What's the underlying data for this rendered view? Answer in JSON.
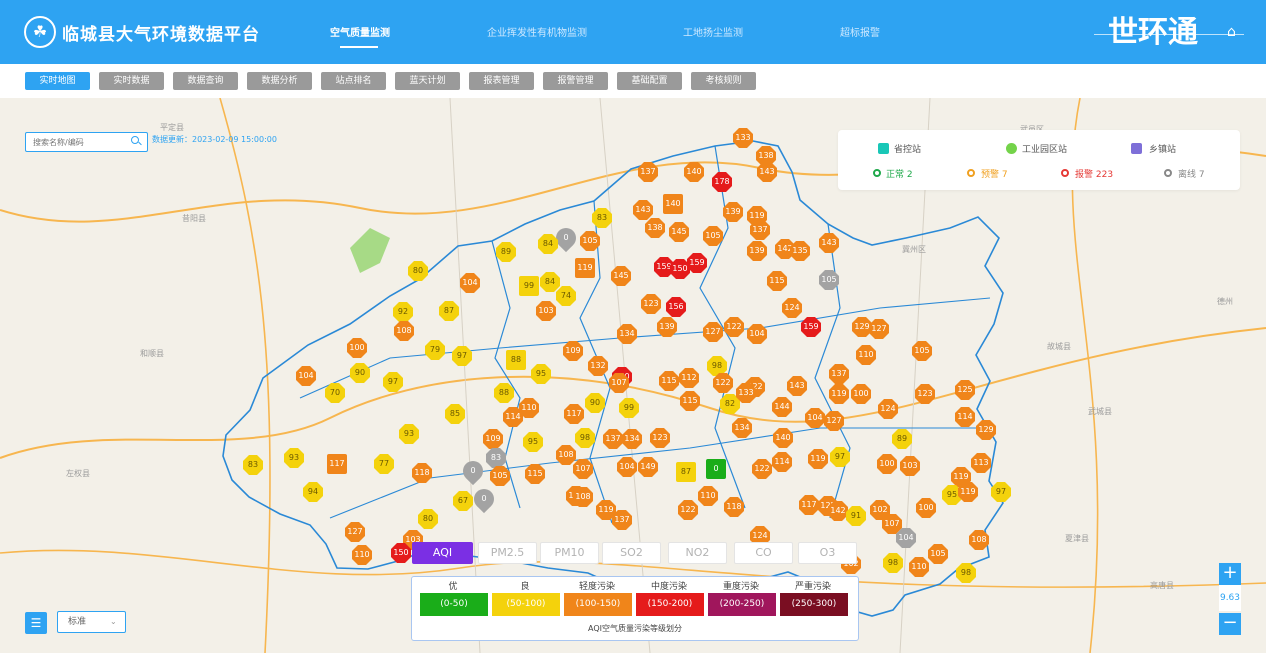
{
  "header": {
    "title": "临城县大气环境数据平台",
    "logo_glyph": "☘",
    "tabs": [
      {
        "label": "空气质量监测",
        "active": true
      },
      {
        "label": "企业挥发性有机物监测",
        "active": false
      },
      {
        "label": "工地扬尘监测",
        "active": false
      },
      {
        "label": "超标报警",
        "active": false
      }
    ],
    "brand": "世环通",
    "home_icon": "⌂"
  },
  "subnav": [
    {
      "label": "实时地图",
      "active": true
    },
    {
      "label": "实时数据",
      "active": false
    },
    {
      "label": "数据查询",
      "active": false
    },
    {
      "label": "数据分析",
      "active": false
    },
    {
      "label": "站点排名",
      "active": false
    },
    {
      "label": "蓝天计划",
      "active": false
    },
    {
      "label": "报表管理",
      "active": false
    },
    {
      "label": "报警管理",
      "active": false
    },
    {
      "label": "基础配置",
      "active": false
    },
    {
      "label": "考核规则",
      "active": false
    }
  ],
  "search": {
    "placeholder": "搜索名称/编码",
    "value": ""
  },
  "update_info": "数据更新：2023-02-09 15:00:00",
  "legend": {
    "station_types": [
      {
        "label": "省控站",
        "icon": "flag-icon",
        "color": "#19c7b7"
      },
      {
        "label": "工业园区站",
        "icon": "leaf-icon",
        "color": "#74d34a"
      },
      {
        "label": "乡镇站",
        "icon": "house-icon",
        "color": "#7e6fd8"
      }
    ],
    "status": [
      {
        "label": "正常 2",
        "color": "#1ea84a"
      },
      {
        "label": "预警 7",
        "color": "#f0a020"
      },
      {
        "label": "报警 223",
        "color": "#e53935"
      },
      {
        "label": "离线 7",
        "color": "#888888"
      }
    ]
  },
  "pollutants": [
    {
      "label": "AQI",
      "active": true
    },
    {
      "label": "PM2.5",
      "active": false
    },
    {
      "label": "PM10",
      "active": false
    },
    {
      "label": "SO2",
      "active": false
    },
    {
      "label": "NO2",
      "active": false
    },
    {
      "label": "CO",
      "active": false
    },
    {
      "label": "O3",
      "active": false
    }
  ],
  "aqi_scale": {
    "caption": "AQI空气质量污染等级划分",
    "levels": [
      {
        "name": "优",
        "range": "(0-50)",
        "color": "#1aad19"
      },
      {
        "name": "良",
        "range": "(50-100)",
        "color": "#f4d20c"
      },
      {
        "name": "轻度污染",
        "range": "(100-150)",
        "color": "#f0851a"
      },
      {
        "name": "中度污染",
        "range": "(150-200)",
        "color": "#e51b1b"
      },
      {
        "name": "重度污染",
        "range": "(200-250)",
        "color": "#a0165c"
      },
      {
        "name": "严重污染",
        "range": "(250-300)",
        "color": "#7a0e22"
      }
    ]
  },
  "map_controls": {
    "map_type": "标准",
    "zoom_in": "+",
    "zoom_out": "−",
    "zoom_level": "9.63"
  },
  "places": [
    {
      "name": "平定县"
    },
    {
      "name": "昔阳县"
    },
    {
      "name": "和顺县"
    },
    {
      "name": "左权县"
    },
    {
      "name": "武邑区"
    },
    {
      "name": "冀州区"
    },
    {
      "name": "故城县"
    },
    {
      "name": "武城县"
    },
    {
      "name": "夏津县"
    },
    {
      "name": "高唐县"
    },
    {
      "name": "德州"
    }
  ],
  "stations": [
    {
      "value": "133",
      "level": "light",
      "shape": "oct"
    },
    {
      "value": "138",
      "level": "light",
      "shape": "oct"
    },
    {
      "value": "137",
      "level": "light",
      "shape": "oct"
    },
    {
      "value": "140",
      "level": "light",
      "shape": "oct"
    },
    {
      "value": "178",
      "level": "moderate",
      "shape": "oct"
    },
    {
      "value": "143",
      "level": "light",
      "shape": "oct"
    },
    {
      "value": "143",
      "level": "light",
      "shape": "oct"
    },
    {
      "value": "140",
      "level": "light",
      "shape": "sq"
    },
    {
      "value": "138",
      "level": "light",
      "shape": "oct"
    },
    {
      "value": "145",
      "level": "light",
      "shape": "oct"
    },
    {
      "value": "139",
      "level": "light",
      "shape": "oct"
    },
    {
      "value": "119",
      "level": "light",
      "shape": "oct"
    },
    {
      "value": "105",
      "level": "light",
      "shape": "oct"
    },
    {
      "value": "137",
      "level": "light",
      "shape": "oct"
    },
    {
      "value": "83",
      "level": "good",
      "shape": "oct"
    },
    {
      "value": "0",
      "level": "offline",
      "shape": "pin"
    },
    {
      "value": "105",
      "level": "light",
      "shape": "oct"
    },
    {
      "value": "84",
      "level": "good",
      "shape": "oct"
    },
    {
      "value": "89",
      "level": "good",
      "shape": "oct"
    },
    {
      "value": "139",
      "level": "light",
      "shape": "oct"
    },
    {
      "value": "142",
      "level": "light",
      "shape": "oct"
    },
    {
      "value": "135",
      "level": "light",
      "shape": "oct"
    },
    {
      "value": "143",
      "level": "light",
      "shape": "oct"
    },
    {
      "value": "80",
      "level": "good",
      "shape": "oct"
    },
    {
      "value": "119",
      "level": "light",
      "shape": "sq"
    },
    {
      "value": "145",
      "level": "light",
      "shape": "oct"
    },
    {
      "value": "159",
      "level": "moderate",
      "shape": "oct"
    },
    {
      "value": "150",
      "level": "moderate",
      "shape": "oct"
    },
    {
      "value": "159",
      "level": "moderate",
      "shape": "oct"
    },
    {
      "value": "115",
      "level": "light",
      "shape": "oct"
    },
    {
      "value": "105",
      "level": "offline",
      "shape": "oct"
    },
    {
      "value": "104",
      "level": "light",
      "shape": "oct"
    },
    {
      "value": "99",
      "level": "good",
      "shape": "sq"
    },
    {
      "value": "84",
      "level": "good",
      "shape": "oct"
    },
    {
      "value": "74",
      "level": "good",
      "shape": "oct"
    },
    {
      "value": "92",
      "level": "good",
      "shape": "oct"
    },
    {
      "value": "87",
      "level": "good",
      "shape": "oct"
    },
    {
      "value": "103",
      "level": "light",
      "shape": "oct"
    },
    {
      "value": "123",
      "level": "light",
      "shape": "oct"
    },
    {
      "value": "156",
      "level": "moderate",
      "shape": "oct"
    },
    {
      "value": "124",
      "level": "light",
      "shape": "oct"
    },
    {
      "value": "108",
      "level": "light",
      "shape": "oct"
    },
    {
      "value": "134",
      "level": "light",
      "shape": "oct"
    },
    {
      "value": "139",
      "level": "light",
      "shape": "oct"
    },
    {
      "value": "127",
      "level": "light",
      "shape": "oct"
    },
    {
      "value": "122",
      "level": "light",
      "shape": "oct"
    },
    {
      "value": "104",
      "level": "light",
      "shape": "oct"
    },
    {
      "value": "159",
      "level": "moderate",
      "shape": "oct"
    },
    {
      "value": "129",
      "level": "light",
      "shape": "oct"
    },
    {
      "value": "127",
      "level": "light",
      "shape": "oct"
    },
    {
      "value": "100",
      "level": "light",
      "shape": "oct"
    },
    {
      "value": "79",
      "level": "good",
      "shape": "oct"
    },
    {
      "value": "97",
      "level": "good",
      "shape": "oct"
    },
    {
      "value": "88",
      "level": "good",
      "shape": "sq"
    },
    {
      "value": "109",
      "level": "light",
      "shape": "oct"
    },
    {
      "value": "132",
      "level": "light",
      "shape": "oct"
    },
    {
      "value": "150",
      "level": "moderate",
      "shape": "oct"
    },
    {
      "value": "110",
      "level": "light",
      "shape": "oct"
    },
    {
      "value": "105",
      "level": "light",
      "shape": "oct"
    },
    {
      "value": "104",
      "level": "light",
      "shape": "oct"
    },
    {
      "value": "90",
      "level": "good",
      "shape": "oct"
    },
    {
      "value": "97",
      "level": "good",
      "shape": "oct"
    },
    {
      "value": "70",
      "level": "good",
      "shape": "oct"
    },
    {
      "value": "95",
      "level": "good",
      "shape": "oct"
    },
    {
      "value": "107",
      "level": "light",
      "shape": "oct"
    },
    {
      "value": "115",
      "level": "light",
      "shape": "oct"
    },
    {
      "value": "112",
      "level": "light",
      "shape": "oct"
    },
    {
      "value": "98",
      "level": "good",
      "shape": "oct"
    },
    {
      "value": "122",
      "level": "light",
      "shape": "oct"
    },
    {
      "value": "143",
      "level": "light",
      "shape": "oct"
    },
    {
      "value": "137",
      "level": "light",
      "shape": "oct"
    },
    {
      "value": "125",
      "level": "light",
      "shape": "oct"
    },
    {
      "value": "122",
      "level": "light",
      "shape": "oct"
    },
    {
      "value": "88",
      "level": "good",
      "shape": "oct"
    },
    {
      "value": "110",
      "level": "light",
      "shape": "oct"
    },
    {
      "value": "90",
      "level": "good",
      "shape": "oct"
    },
    {
      "value": "99",
      "level": "good",
      "shape": "oct"
    },
    {
      "value": "115",
      "level": "light",
      "shape": "oct"
    },
    {
      "value": "82",
      "level": "good",
      "shape": "oct"
    },
    {
      "value": "133",
      "level": "light",
      "shape": "oct"
    },
    {
      "value": "144",
      "level": "light",
      "shape": "oct"
    },
    {
      "value": "119",
      "level": "light",
      "shape": "oct"
    },
    {
      "value": "100",
      "level": "light",
      "shape": "oct"
    },
    {
      "value": "124",
      "level": "light",
      "shape": "oct"
    },
    {
      "value": "123",
      "level": "light",
      "shape": "oct"
    },
    {
      "value": "114",
      "level": "light",
      "shape": "oct"
    },
    {
      "value": "85",
      "level": "good",
      "shape": "oct"
    },
    {
      "value": "114",
      "level": "light",
      "shape": "oct"
    },
    {
      "value": "117",
      "level": "light",
      "shape": "oct"
    },
    {
      "value": "104",
      "level": "light",
      "shape": "oct"
    },
    {
      "value": "127",
      "level": "light",
      "shape": "oct"
    },
    {
      "value": "134",
      "level": "light",
      "shape": "oct"
    },
    {
      "value": "129",
      "level": "light",
      "shape": "oct"
    },
    {
      "value": "93",
      "level": "good",
      "shape": "oct"
    },
    {
      "value": "109",
      "level": "light",
      "shape": "oct"
    },
    {
      "value": "95",
      "level": "good",
      "shape": "oct"
    },
    {
      "value": "98",
      "level": "good",
      "shape": "oct"
    },
    {
      "value": "137",
      "level": "light",
      "shape": "oct"
    },
    {
      "value": "134",
      "level": "light",
      "shape": "oct"
    },
    {
      "value": "123",
      "level": "light",
      "shape": "oct"
    },
    {
      "value": "140",
      "level": "light",
      "shape": "oct"
    },
    {
      "value": "108",
      "level": "light",
      "shape": "oct"
    },
    {
      "value": "119",
      "level": "light",
      "shape": "oct"
    },
    {
      "value": "97",
      "level": "good",
      "shape": "oct"
    },
    {
      "value": "89",
      "level": "good",
      "shape": "oct"
    },
    {
      "value": "83",
      "level": "good",
      "shape": "oct"
    },
    {
      "value": "93",
      "level": "good",
      "shape": "oct"
    },
    {
      "value": "117",
      "level": "light",
      "shape": "sq"
    },
    {
      "value": "77",
      "level": "good",
      "shape": "oct"
    },
    {
      "value": "118",
      "level": "light",
      "shape": "oct"
    },
    {
      "value": "0",
      "level": "offline",
      "shape": "pin"
    },
    {
      "value": "83",
      "level": "offline",
      "shape": "oct"
    },
    {
      "value": "105",
      "level": "light",
      "shape": "oct"
    },
    {
      "value": "115",
      "level": "light",
      "shape": "oct"
    },
    {
      "value": "107",
      "level": "light",
      "shape": "oct"
    },
    {
      "value": "104",
      "level": "light",
      "shape": "oct"
    },
    {
      "value": "149",
      "level": "light",
      "shape": "oct"
    },
    {
      "value": "87",
      "level": "good",
      "shape": "sq"
    },
    {
      "value": "0",
      "level": "good-excellent",
      "shape": "sq"
    },
    {
      "value": "122",
      "level": "light",
      "shape": "oct"
    },
    {
      "value": "114",
      "level": "light",
      "shape": "oct"
    },
    {
      "value": "100",
      "level": "light",
      "shape": "oct"
    },
    {
      "value": "103",
      "level": "light",
      "shape": "oct"
    },
    {
      "value": "119",
      "level": "light",
      "shape": "oct"
    },
    {
      "value": "113",
      "level": "light",
      "shape": "oct"
    },
    {
      "value": "95",
      "level": "good",
      "shape": "oct"
    },
    {
      "value": "119",
      "level": "light",
      "shape": "oct"
    },
    {
      "value": "97",
      "level": "good",
      "shape": "oct"
    },
    {
      "value": "94",
      "level": "good",
      "shape": "oct"
    },
    {
      "value": "67",
      "level": "good",
      "shape": "oct"
    },
    {
      "value": "0",
      "level": "offline",
      "shape": "pin"
    },
    {
      "value": "119",
      "level": "light",
      "shape": "oct"
    },
    {
      "value": "108",
      "level": "light",
      "shape": "oct"
    },
    {
      "value": "119",
      "level": "light",
      "shape": "oct"
    },
    {
      "value": "137",
      "level": "light",
      "shape": "oct"
    },
    {
      "value": "110",
      "level": "light",
      "shape": "oct"
    },
    {
      "value": "122",
      "level": "light",
      "shape": "oct"
    },
    {
      "value": "118",
      "level": "light",
      "shape": "oct"
    },
    {
      "value": "117",
      "level": "light",
      "shape": "oct"
    },
    {
      "value": "125",
      "level": "light",
      "shape": "oct"
    },
    {
      "value": "142",
      "level": "light",
      "shape": "oct"
    },
    {
      "value": "91",
      "level": "good",
      "shape": "oct"
    },
    {
      "value": "102",
      "level": "light",
      "shape": "oct"
    },
    {
      "value": "107",
      "level": "light",
      "shape": "oct"
    },
    {
      "value": "100",
      "level": "light",
      "shape": "oct"
    },
    {
      "value": "104",
      "level": "offline",
      "shape": "oct"
    },
    {
      "value": "80",
      "level": "good",
      "shape": "oct"
    },
    {
      "value": "103",
      "level": "light",
      "shape": "oct"
    },
    {
      "value": "127",
      "level": "light",
      "shape": "oct"
    },
    {
      "value": "110",
      "level": "light",
      "shape": "oct"
    },
    {
      "value": "150",
      "level": "moderate",
      "shape": "oct"
    },
    {
      "value": "124",
      "level": "light",
      "shape": "oct"
    },
    {
      "value": "102",
      "level": "light",
      "shape": "oct"
    },
    {
      "value": "98",
      "level": "good",
      "shape": "oct"
    },
    {
      "value": "110",
      "level": "light",
      "shape": "oct"
    },
    {
      "value": "105",
      "level": "light",
      "shape": "oct"
    },
    {
      "value": "108",
      "level": "light",
      "shape": "oct"
    },
    {
      "value": "98",
      "level": "good",
      "shape": "oct"
    }
  ]
}
